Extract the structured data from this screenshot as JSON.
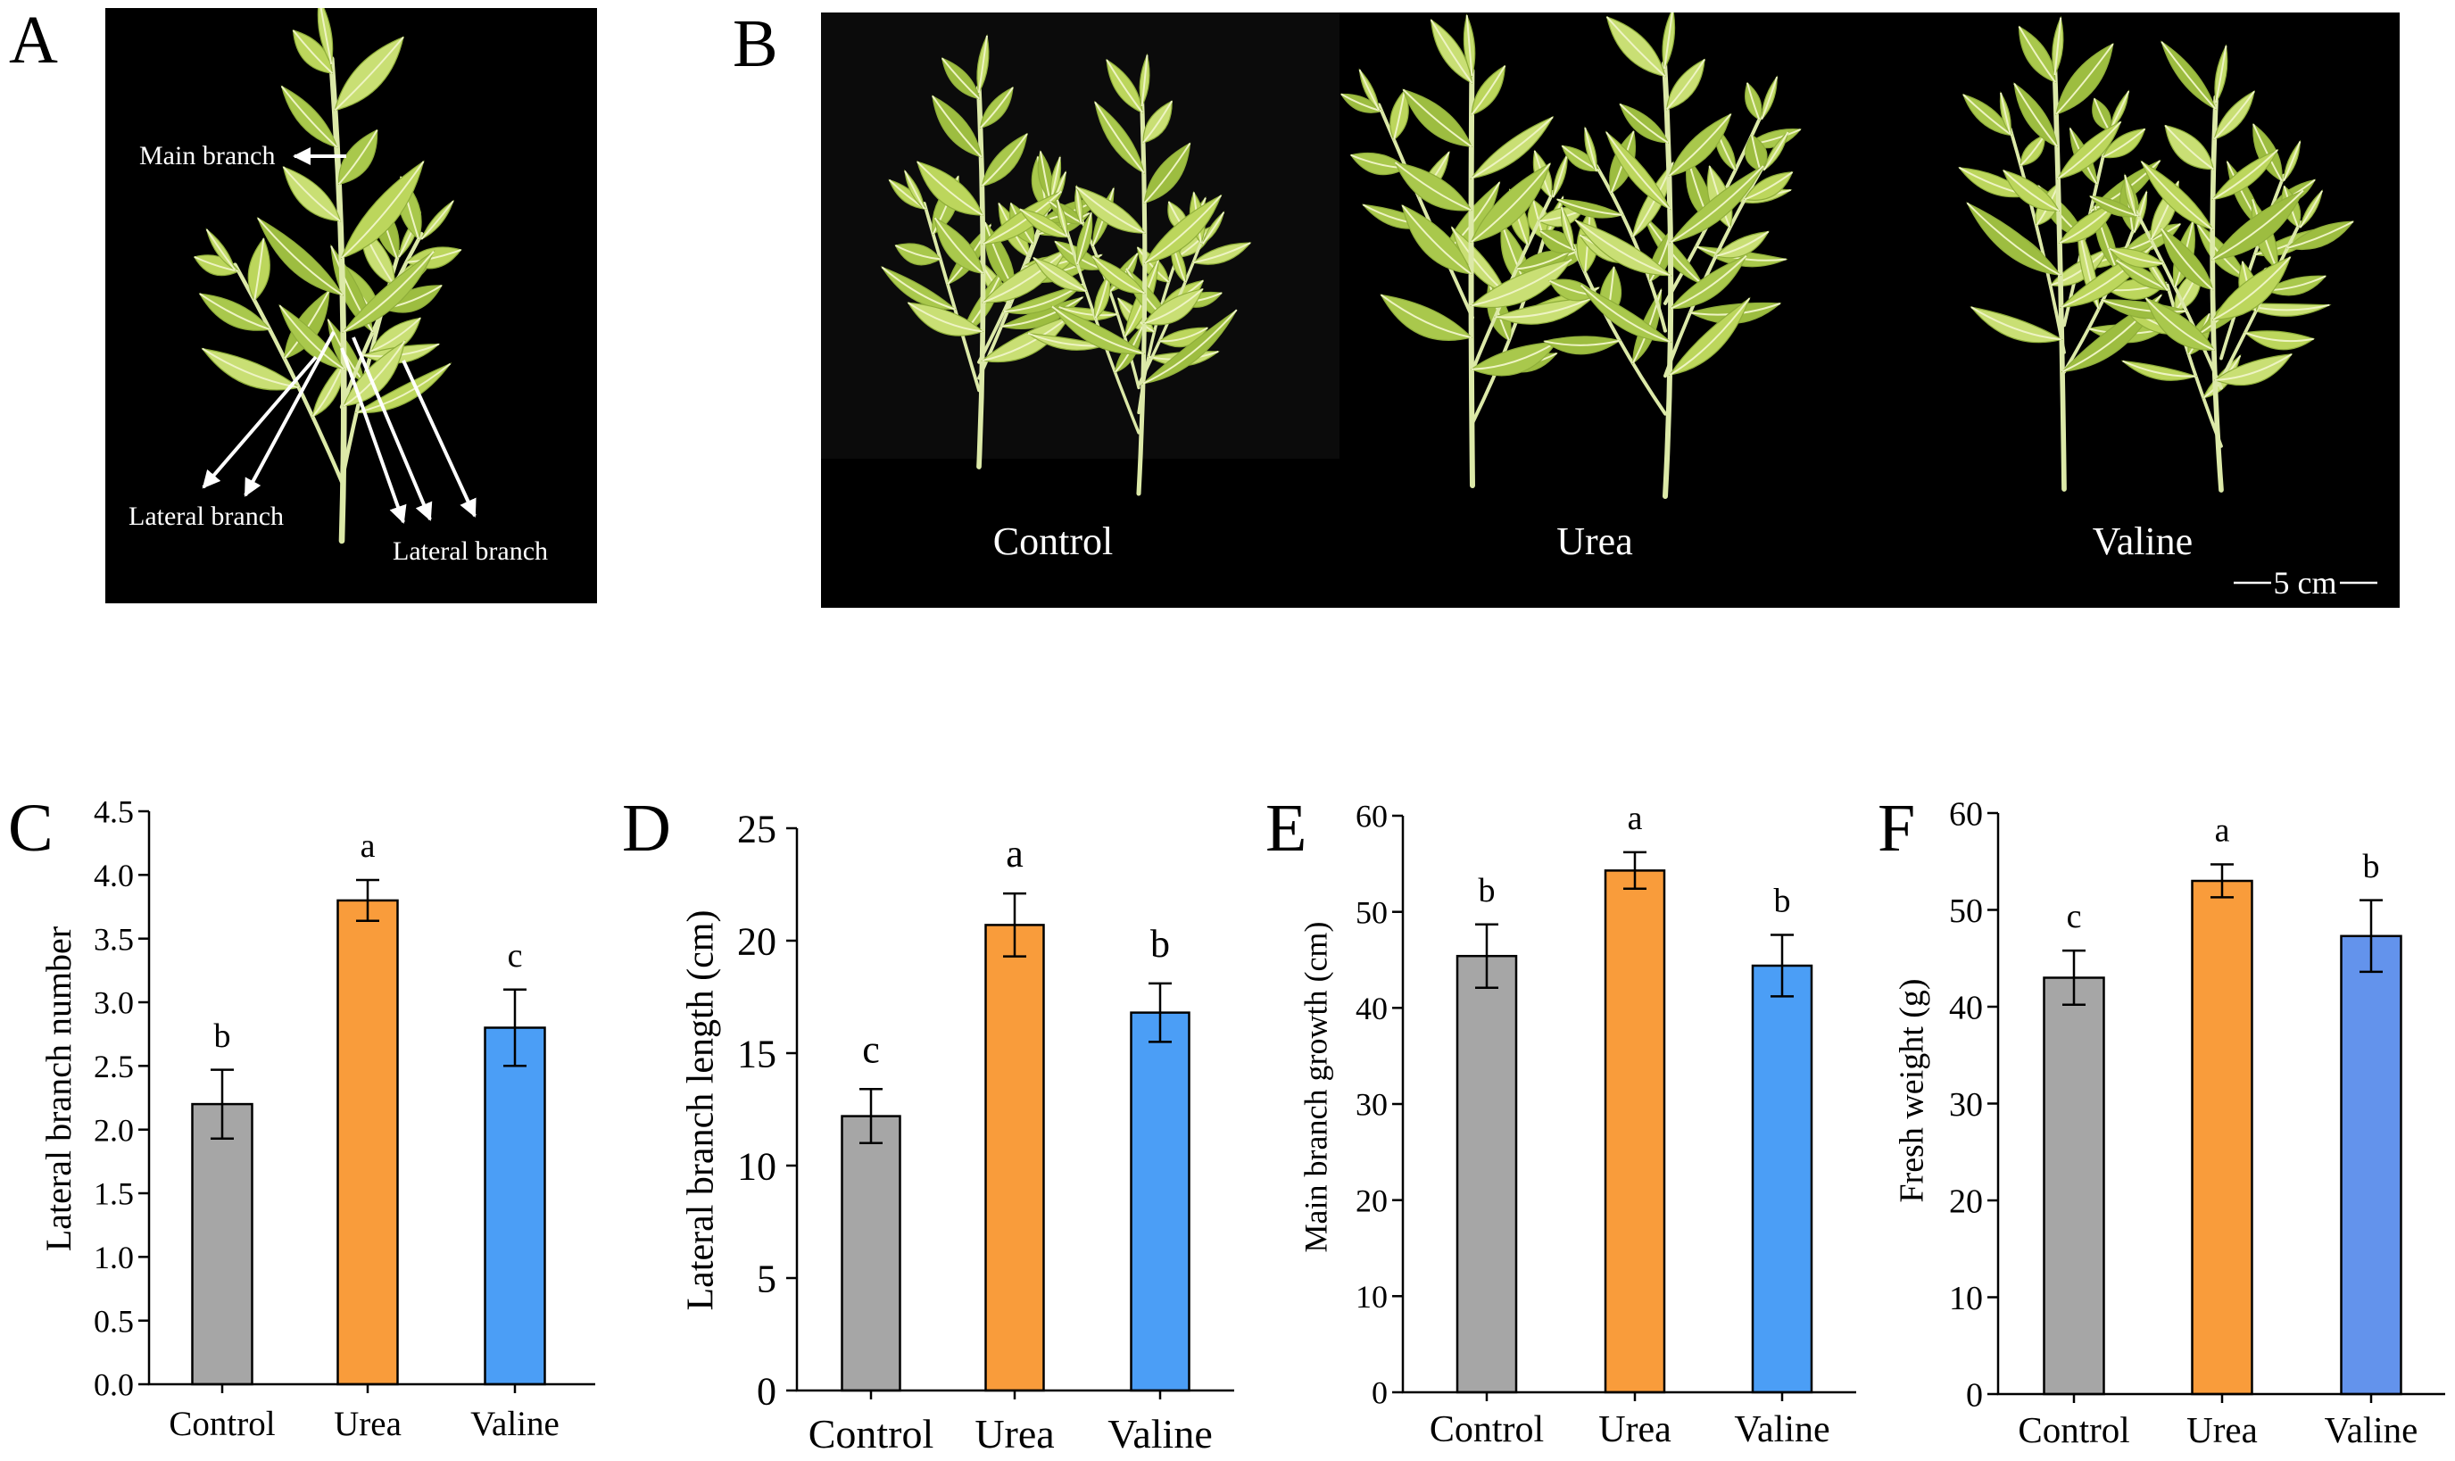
{
  "figure": {
    "panel_labels": {
      "a": "A",
      "b": "B"
    }
  },
  "panel_a": {
    "main_branch": "Main branch",
    "lateral_branch_left": "Lateral branch",
    "lateral_branch_right": "Lateral branch"
  },
  "panel_b": {
    "control": "Control",
    "urea": "Urea",
    "valine": "Valine",
    "scale_bar": "5 cm"
  },
  "chart_data": [
    {
      "panel": "C",
      "type": "bar",
      "categories": [
        "Control",
        "Urea",
        "Valine"
      ],
      "values": [
        2.2,
        3.8,
        2.8
      ],
      "errors": [
        0.27,
        0.16,
        0.3
      ],
      "letters": [
        "b",
        "a",
        "c"
      ],
      "colors": [
        "#a6a6a6",
        "#f99c3b",
        "#4b9ef6"
      ],
      "xlabel": "",
      "ylabel": "Lateral branch number",
      "ylim": [
        0,
        4.5
      ],
      "yticks": [
        "0.0",
        "0.5",
        "1.0",
        "1.5",
        "2.0",
        "2.5",
        "3.0",
        "3.5",
        "4.0",
        "4.5"
      ]
    },
    {
      "panel": "D",
      "type": "bar",
      "categories": [
        "Control",
        "Urea",
        "Valine"
      ],
      "values": [
        12.2,
        20.7,
        16.8
      ],
      "errors": [
        1.2,
        1.4,
        1.3
      ],
      "letters": [
        "c",
        "a",
        "b"
      ],
      "colors": [
        "#a6a6a6",
        "#f99c3b",
        "#4b9ef6"
      ],
      "xlabel": "",
      "ylabel": "Lateral branch length (cm)",
      "ylim": [
        0,
        25
      ],
      "yticks": [
        "0",
        "5",
        "10",
        "15",
        "20",
        "25"
      ]
    },
    {
      "panel": "E",
      "type": "bar",
      "categories": [
        "Control",
        "Urea",
        "Valine"
      ],
      "values": [
        45.4,
        54.3,
        44.4
      ],
      "errors": [
        3.3,
        1.9,
        3.2
      ],
      "letters": [
        "b",
        "a",
        "b"
      ],
      "colors": [
        "#a6a6a6",
        "#f99c3b",
        "#4b9ef6"
      ],
      "xlabel": "",
      "ylabel": "Main branch growth (cm)",
      "ylim": [
        0,
        60
      ],
      "yticks": [
        "0",
        "10",
        "20",
        "30",
        "40",
        "50",
        "60"
      ]
    },
    {
      "panel": "F",
      "type": "bar",
      "categories": [
        "Control",
        "Urea",
        "Valine"
      ],
      "values": [
        43.0,
        53.0,
        47.3
      ],
      "errors": [
        2.8,
        1.7,
        3.7
      ],
      "letters": [
        "c",
        "a",
        "b"
      ],
      "colors": [
        "#a6a6a6",
        "#f99c3b",
        "#6393ec"
      ],
      "xlabel": "",
      "ylabel": "Fresh weight (g)",
      "ylim": [
        0,
        60
      ],
      "yticks": [
        "0",
        "10",
        "20",
        "30",
        "40",
        "50",
        "60"
      ]
    }
  ]
}
